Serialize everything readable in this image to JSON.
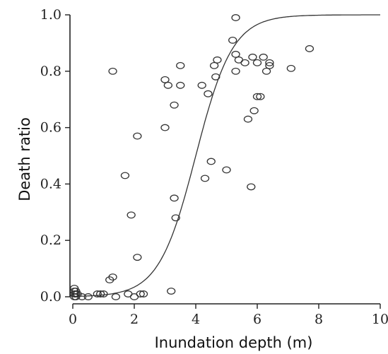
{
  "chart_data": {
    "type": "scatter",
    "title": "",
    "xlabel": "Inundation depth (m)",
    "ylabel": "Death ratio",
    "xlim": [
      0,
      10
    ],
    "ylim": [
      0,
      1.0
    ],
    "x_ticks": [
      "0",
      "2",
      "4",
      "6",
      "8",
      "10"
    ],
    "y_ticks": [
      "0.0",
      "0.2",
      "0.4",
      "0.6",
      "0.8",
      "1.0"
    ],
    "grid": false,
    "legend": "none",
    "series": [
      {
        "marker": "open-circle",
        "points": [
          [
            0.05,
            0.0
          ],
          [
            0.05,
            0.01
          ],
          [
            0.05,
            0.02
          ],
          [
            0.05,
            0.03
          ],
          [
            0.1,
            0.0
          ],
          [
            0.1,
            0.01
          ],
          [
            0.1,
            0.02
          ],
          [
            0.15,
            0.01
          ],
          [
            0.3,
            0.0
          ],
          [
            0.5,
            0.0
          ],
          [
            0.8,
            0.01
          ],
          [
            0.9,
            0.01
          ],
          [
            1.0,
            0.01
          ],
          [
            1.2,
            0.06
          ],
          [
            1.3,
            0.07
          ],
          [
            1.4,
            0.0
          ],
          [
            1.3,
            0.8
          ],
          [
            1.7,
            0.43
          ],
          [
            1.8,
            0.01
          ],
          [
            1.9,
            0.29
          ],
          [
            2.0,
            0.0
          ],
          [
            2.1,
            0.57
          ],
          [
            2.1,
            0.14
          ],
          [
            2.2,
            0.01
          ],
          [
            2.3,
            0.01
          ],
          [
            3.0,
            0.6
          ],
          [
            3.0,
            0.77
          ],
          [
            3.1,
            0.75
          ],
          [
            3.2,
            0.02
          ],
          [
            3.3,
            0.68
          ],
          [
            3.3,
            0.35
          ],
          [
            3.35,
            0.28
          ],
          [
            3.5,
            0.82
          ],
          [
            3.5,
            0.75
          ],
          [
            4.2,
            0.75
          ],
          [
            4.3,
            0.42
          ],
          [
            4.4,
            0.72
          ],
          [
            4.5,
            0.48
          ],
          [
            4.6,
            0.82
          ],
          [
            4.65,
            0.78
          ],
          [
            4.7,
            0.84
          ],
          [
            5.0,
            0.45
          ],
          [
            5.2,
            0.91
          ],
          [
            5.3,
            0.99
          ],
          [
            5.3,
            0.86
          ],
          [
            5.3,
            0.8
          ],
          [
            5.4,
            0.84
          ],
          [
            5.6,
            0.83
          ],
          [
            5.7,
            0.63
          ],
          [
            5.8,
            0.39
          ],
          [
            5.85,
            0.85
          ],
          [
            5.9,
            0.66
          ],
          [
            6.0,
            0.83
          ],
          [
            6.0,
            0.71
          ],
          [
            6.1,
            0.71
          ],
          [
            6.2,
            0.85
          ],
          [
            6.3,
            0.8
          ],
          [
            6.4,
            0.83
          ],
          [
            6.4,
            0.82
          ],
          [
            7.1,
            0.81
          ],
          [
            7.7,
            0.88
          ]
        ]
      },
      {
        "type": "line",
        "fit": "logistic",
        "midpoint": 4.0,
        "scale": 0.6
      }
    ]
  }
}
